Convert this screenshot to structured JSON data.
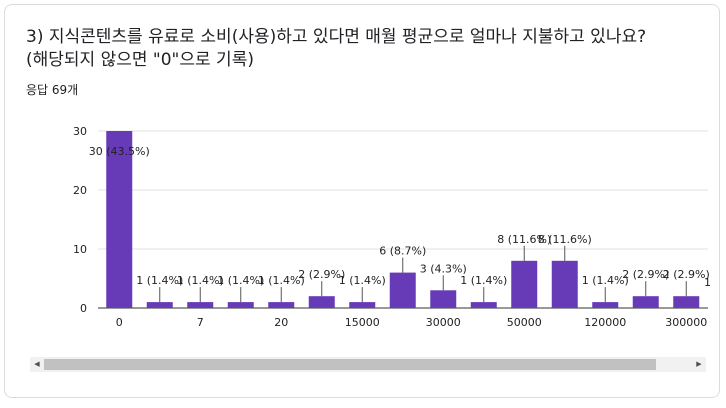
{
  "question": {
    "title": "3) 지식콘텐츠를 유료로 소비(사용)하고 있다면 매월 평균으로 얼마나 지불하고 있나요?\n(해당되지 않으면 \"0\"으로 기록)",
    "responses": "응답 69개"
  },
  "colors": {
    "bar": "#673ab7",
    "grid": "#e0e0e0",
    "axis": "#333333",
    "text": "#222222"
  },
  "scrollbar": {
    "left_arrow": "◀",
    "right_arrow": "▶"
  },
  "chart_data": {
    "type": "bar",
    "title": "",
    "xlabel": "",
    "ylabel": "",
    "ylim": [
      0,
      30
    ],
    "yticks": [
      0,
      10,
      20,
      30
    ],
    "grid": true,
    "categories": [
      "0",
      "",
      "7",
      "",
      "20",
      "",
      "15000",
      "",
      "30000",
      "",
      "50000",
      "",
      "120000",
      "",
      "300000"
    ],
    "values": [
      30,
      1,
      1,
      1,
      1,
      2,
      1,
      6,
      3,
      1,
      8,
      8,
      1,
      2,
      2
    ],
    "data_labels": [
      "30 (43.5%)",
      "1 (1.4%)",
      "1 (1.4%)",
      "1 (1.4%)",
      "1 (1.4%)",
      "2 (2.9%)",
      "1 (1.4%)",
      "6 (8.7%)",
      "3 (4.3%)",
      "1 (1.4%)",
      "8 (11.6%)",
      "8 (11.6%)",
      "1 (1.4%)",
      "2 (2.9%)",
      "2 (2.9%)"
    ],
    "clipped_label": "1"
  }
}
